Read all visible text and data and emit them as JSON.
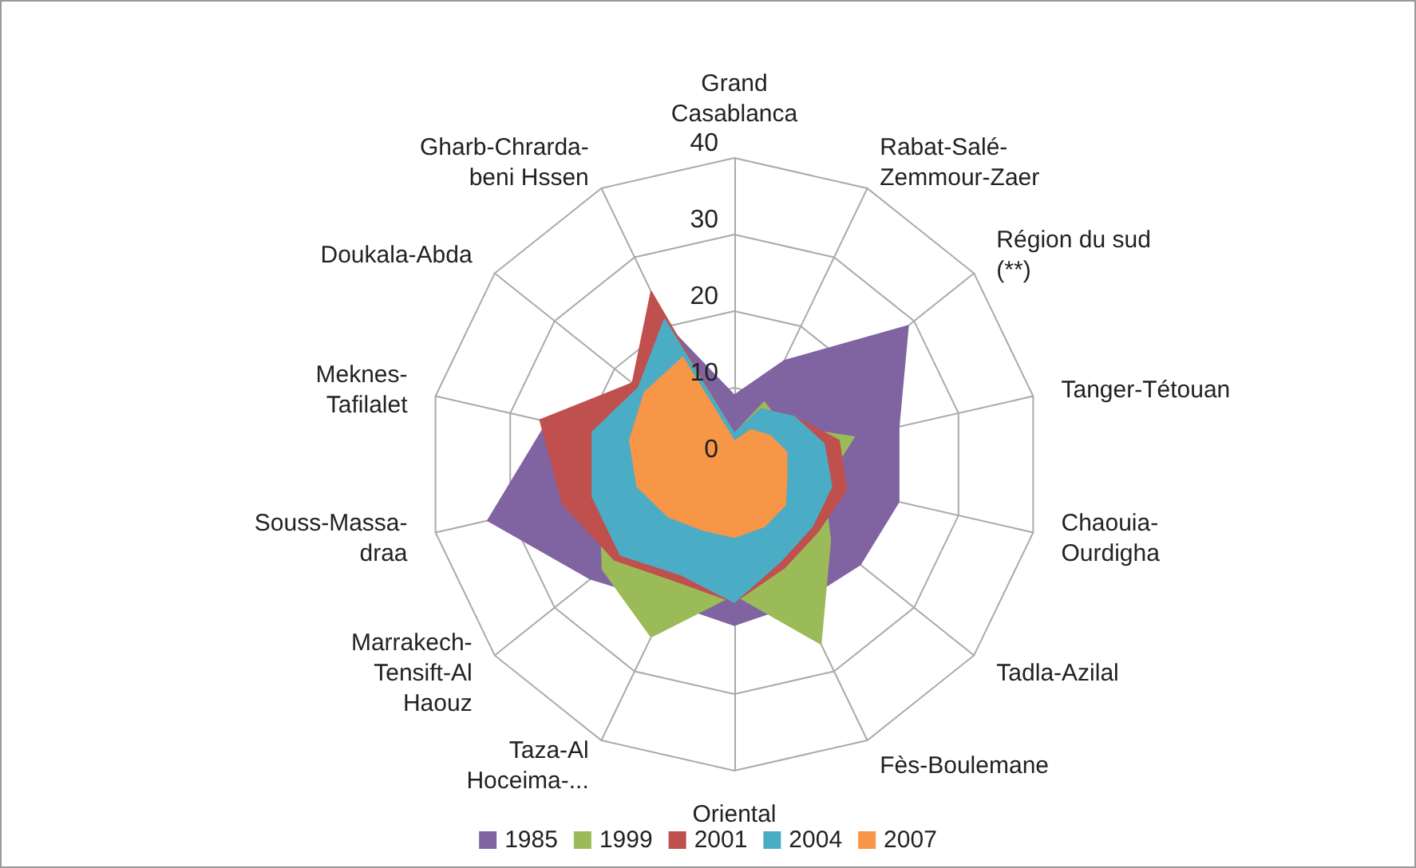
{
  "chart_data": {
    "type": "radar",
    "categories": [
      "Grand Casablanca",
      "Rabat-Salé-Zemmour-Zaer",
      "Région du sud (**)",
      "Tanger-Tétouan",
      "Chaouia-Ourdigha",
      "Tadla-Azilal",
      "Fès-Boulemane",
      "Oriental",
      "Taza-Al Hoceima-...",
      "Marrakech-Tensift-Al Haouz",
      "Souss-Massa-draa",
      "Meknes-Tafilalet",
      "Doukala-Abda",
      "Gharb-Chrarda-beni Hssen"
    ],
    "series": [
      {
        "name": "1985",
        "color": "#8064a2",
        "values": [
          9,
          15,
          29,
          22,
          22,
          21,
          20,
          21,
          20,
          24,
          33,
          25,
          17,
          20
        ]
      },
      {
        "name": "1999",
        "color": "#9bbb59",
        "values": [
          4,
          9,
          8,
          16,
          12,
          16,
          26,
          17,
          25,
          22,
          18,
          17,
          15,
          19
        ]
      },
      {
        "name": "2001",
        "color": "#c0504d",
        "values": [
          4,
          8,
          10,
          14,
          15,
          14,
          15,
          18,
          17,
          20,
          23,
          26,
          17,
          25
        ]
      },
      {
        "name": "2004",
        "color": "#4bacc6",
        "values": [
          4,
          8,
          10,
          12,
          13,
          13,
          14,
          18,
          16,
          19,
          19,
          19,
          16,
          21
        ]
      },
      {
        "name": "2007",
        "color": "#f79646",
        "values": [
          3,
          5,
          6,
          7,
          7,
          8.5,
          9,
          9.5,
          9.5,
          11,
          13,
          14,
          15,
          15.5
        ]
      }
    ],
    "ylim": [
      0,
      40
    ],
    "yticks": [
      0,
      10,
      20,
      30,
      40
    ],
    "grid": true,
    "legend": "bottom",
    "marker": "none"
  }
}
